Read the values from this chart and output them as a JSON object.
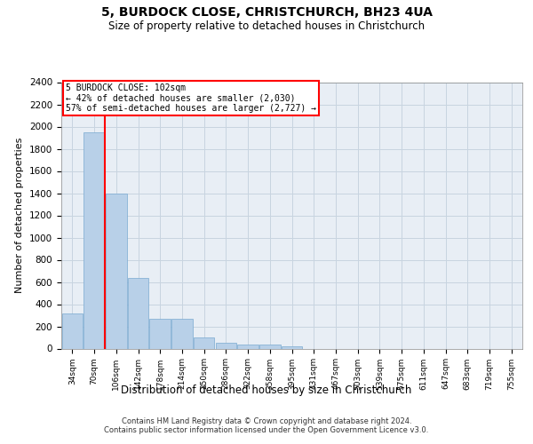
{
  "title_line1": "5, BURDOCK CLOSE, CHRISTCHURCH, BH23 4UA",
  "title_line2": "Size of property relative to detached houses in Christchurch",
  "xlabel": "Distribution of detached houses by size in Christchurch",
  "ylabel": "Number of detached properties",
  "categories": [
    "34sqm",
    "70sqm",
    "106sqm",
    "142sqm",
    "178sqm",
    "214sqm",
    "250sqm",
    "286sqm",
    "322sqm",
    "358sqm",
    "395sqm",
    "431sqm",
    "467sqm",
    "503sqm",
    "539sqm",
    "575sqm",
    "611sqm",
    "647sqm",
    "683sqm",
    "719sqm",
    "755sqm"
  ],
  "bar_heights": [
    320,
    1950,
    1400,
    640,
    270,
    270,
    100,
    50,
    40,
    35,
    20,
    0,
    0,
    0,
    0,
    0,
    0,
    0,
    0,
    0,
    0
  ],
  "bar_color": "#b8d0e8",
  "bar_edge_color": "#7aaad0",
  "grid_color": "#c8d4e0",
  "background_color": "#e8eef5",
  "vline_x": 1.5,
  "vline_color": "red",
  "annotation_text": "5 BURDOCK CLOSE: 102sqm\n← 42% of detached houses are smaller (2,030)\n57% of semi-detached houses are larger (2,727) →",
  "annotation_box_color": "white",
  "annotation_box_edge_color": "red",
  "ylim": [
    0,
    2400
  ],
  "yticks": [
    0,
    200,
    400,
    600,
    800,
    1000,
    1200,
    1400,
    1600,
    1800,
    2000,
    2200,
    2400
  ],
  "footer_line1": "Contains HM Land Registry data © Crown copyright and database right 2024.",
  "footer_line2": "Contains public sector information licensed under the Open Government Licence v3.0."
}
